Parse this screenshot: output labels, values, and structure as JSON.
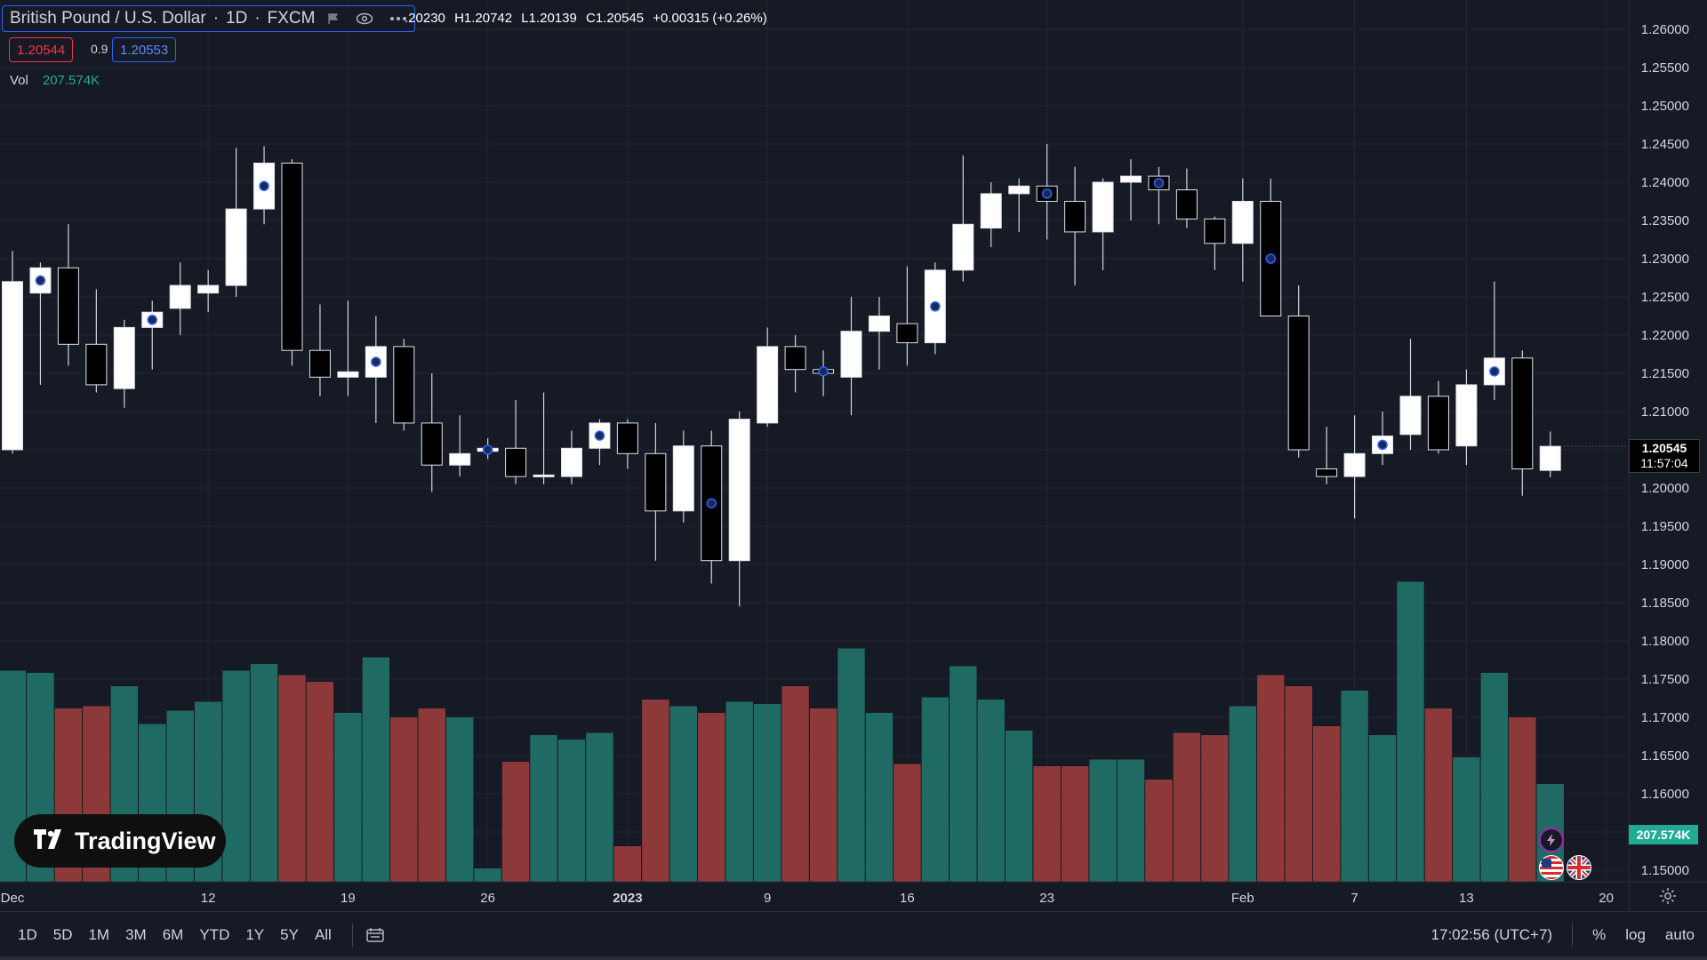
{
  "header": {
    "symbol": "British Pound / U.S. Dollar",
    "interval": "1D",
    "exchange": "FXCM",
    "separator": "·",
    "ohlc": {
      "o": ".20230",
      "h": "H1.20742",
      "l": "L1.20139",
      "c": "C1.20545",
      "change": "+0.00315 (+0.26%)"
    },
    "sell_price": "1.20544",
    "spread": "0.9",
    "buy_price": "1.20553",
    "vol_label": "Vol",
    "vol_value": "207.574K",
    "icons": [
      "flag-icon",
      "eye-icon",
      "more-icon"
    ]
  },
  "price_axis": {
    "current_price": "1.20545",
    "countdown": "11:57:04",
    "volume_tag": "207.574K"
  },
  "bottom_bar": {
    "ranges": [
      "1D",
      "5D",
      "1M",
      "3M",
      "6M",
      "YTD",
      "1Y",
      "5Y",
      "All"
    ],
    "time": "17:02:56 (UTC+7)",
    "percent": "%",
    "log": "log",
    "auto": "auto"
  },
  "logo": {
    "text": "TradingView"
  },
  "colors": {
    "background": "#161a25",
    "up_body": "#ffffff",
    "down_body": "#000000",
    "wick": "#d1d4dc",
    "vol_up": "#1f6b63",
    "vol_down": "#8e3939",
    "grid": "#232733",
    "accent": "#2962ff"
  },
  "chart_data": {
    "type": "candlestick",
    "ylim": [
      1.1475,
      1.2625
    ],
    "yticks": [
      "1.15000",
      "1.15500",
      "1.16000",
      "1.16500",
      "1.17000",
      "1.17500",
      "1.18000",
      "1.18500",
      "1.19000",
      "1.19500",
      "1.20000",
      "1.20500",
      "1.21000",
      "1.21500",
      "1.22000",
      "1.22500",
      "1.23000",
      "1.23500",
      "1.24000",
      "1.24500",
      "1.25000",
      "1.25500",
      "1.26000"
    ],
    "xticks": [
      {
        "label": "Dec",
        "index": -0.5,
        "bold": false
      },
      {
        "label": "12",
        "index": 7,
        "bold": false
      },
      {
        "label": "19",
        "index": 12,
        "bold": false
      },
      {
        "label": "26",
        "index": 17,
        "bold": false
      },
      {
        "label": "2023",
        "index": 22,
        "bold": true
      },
      {
        "label": "9",
        "index": 27,
        "bold": false
      },
      {
        "label": "16",
        "index": 32,
        "bold": false
      },
      {
        "label": "23",
        "index": 37,
        "bold": false
      },
      {
        "label": "Feb",
        "index": 44,
        "bold": false
      },
      {
        "label": "7",
        "index": 48,
        "bold": false
      },
      {
        "label": "13",
        "index": 52,
        "bold": false
      },
      {
        "label": "20",
        "index": 57,
        "bold": false
      }
    ],
    "candles": [
      {
        "o": 1.205,
        "h": 1.231,
        "l": 1.2045,
        "c": 1.227,
        "v": 0.95,
        "m": false
      },
      {
        "o": 1.2255,
        "h": 1.2295,
        "l": 1.2135,
        "c": 1.2288,
        "v": 0.94,
        "m": true
      },
      {
        "o": 1.2288,
        "h": 1.2345,
        "l": 1.216,
        "c": 1.2188,
        "v": 0.78,
        "m": false
      },
      {
        "o": 1.2188,
        "h": 1.226,
        "l": 1.2125,
        "c": 1.2135,
        "v": 0.79,
        "m": false
      },
      {
        "o": 1.213,
        "h": 1.222,
        "l": 1.2105,
        "c": 1.221,
        "v": 0.88,
        "m": false
      },
      {
        "o": 1.221,
        "h": 1.2245,
        "l": 1.2155,
        "c": 1.223,
        "v": 0.71,
        "m": true
      },
      {
        "o": 1.2235,
        "h": 1.2295,
        "l": 1.22,
        "c": 1.2265,
        "v": 0.77,
        "m": false
      },
      {
        "o": 1.2255,
        "h": 1.2285,
        "l": 1.223,
        "c": 1.2265,
        "v": 0.81,
        "m": false
      },
      {
        "o": 1.2265,
        "h": 1.2445,
        "l": 1.225,
        "c": 1.2365,
        "v": 0.95,
        "m": false
      },
      {
        "o": 1.2365,
        "h": 1.2447,
        "l": 1.2345,
        "c": 1.2425,
        "v": 0.98,
        "m": true
      },
      {
        "o": 1.2425,
        "h": 1.243,
        "l": 1.216,
        "c": 1.218,
        "v": 0.93,
        "m": false
      },
      {
        "o": 1.218,
        "h": 1.224,
        "l": 1.212,
        "c": 1.2145,
        "v": 0.9,
        "m": false
      },
      {
        "o": 1.2145,
        "h": 1.2245,
        "l": 1.212,
        "c": 1.2152,
        "v": 0.76,
        "m": false
      },
      {
        "o": 1.2145,
        "h": 1.2225,
        "l": 1.2085,
        "c": 1.2185,
        "v": 1.01,
        "m": true
      },
      {
        "o": 1.2185,
        "h": 1.2195,
        "l": 1.2075,
        "c": 1.2085,
        "v": 0.74,
        "m": false
      },
      {
        "o": 1.2085,
        "h": 1.215,
        "l": 1.1995,
        "c": 1.203,
        "v": 0.78,
        "m": false
      },
      {
        "o": 1.203,
        "h": 1.2095,
        "l": 1.2015,
        "c": 1.2045,
        "v": 0.74,
        "m": false
      },
      {
        "o": 1.2048,
        "h": 1.2065,
        "l": 1.2038,
        "c": 1.2052,
        "v": 0.06,
        "m": true
      },
      {
        "o": 1.2052,
        "h": 1.2115,
        "l": 1.2005,
        "c": 1.2015,
        "v": 0.54,
        "m": false
      },
      {
        "o": 1.2015,
        "h": 1.2125,
        "l": 1.2005,
        "c": 1.2017,
        "v": 0.66,
        "m": false
      },
      {
        "o": 1.2015,
        "h": 1.2075,
        "l": 1.2005,
        "c": 1.2052,
        "v": 0.64,
        "m": false
      },
      {
        "o": 1.2052,
        "h": 1.209,
        "l": 1.203,
        "c": 1.2085,
        "v": 0.67,
        "m": true
      },
      {
        "o": 1.2085,
        "h": 1.209,
        "l": 1.2025,
        "c": 1.2045,
        "v": 0.16,
        "m": false
      },
      {
        "o": 1.2045,
        "h": 1.2085,
        "l": 1.1905,
        "c": 1.197,
        "v": 0.82,
        "m": false
      },
      {
        "o": 1.197,
        "h": 1.2075,
        "l": 1.1955,
        "c": 1.2055,
        "v": 0.79,
        "m": false
      },
      {
        "o": 1.2055,
        "h": 1.2075,
        "l": 1.1875,
        "c": 1.1905,
        "v": 0.76,
        "m": true
      },
      {
        "o": 1.1905,
        "h": 1.21,
        "l": 1.1845,
        "c": 1.209,
        "v": 0.81,
        "m": false
      },
      {
        "o": 1.2085,
        "h": 1.221,
        "l": 1.208,
        "c": 1.2185,
        "v": 0.8,
        "m": false
      },
      {
        "o": 1.2185,
        "h": 1.22,
        "l": 1.2125,
        "c": 1.2155,
        "v": 0.88,
        "m": false
      },
      {
        "o": 1.2155,
        "h": 1.218,
        "l": 1.212,
        "c": 1.215,
        "v": 0.78,
        "m": true
      },
      {
        "o": 1.2145,
        "h": 1.225,
        "l": 1.2095,
        "c": 1.2205,
        "v": 1.05,
        "m": false
      },
      {
        "o": 1.2205,
        "h": 1.225,
        "l": 1.2155,
        "c": 1.2225,
        "v": 0.76,
        "m": false
      },
      {
        "o": 1.2215,
        "h": 1.229,
        "l": 1.216,
        "c": 1.219,
        "v": 0.53,
        "m": false
      },
      {
        "o": 1.219,
        "h": 1.2295,
        "l": 1.2175,
        "c": 1.2285,
        "v": 0.83,
        "m": true
      },
      {
        "o": 1.2285,
        "h": 1.2435,
        "l": 1.227,
        "c": 1.2345,
        "v": 0.97,
        "m": false
      },
      {
        "o": 1.234,
        "h": 1.24,
        "l": 1.2315,
        "c": 1.2385,
        "v": 0.82,
        "m": false
      },
      {
        "o": 1.2385,
        "h": 1.2405,
        "l": 1.2335,
        "c": 1.2395,
        "v": 0.68,
        "m": false
      },
      {
        "o": 1.2395,
        "h": 1.245,
        "l": 1.2325,
        "c": 1.2375,
        "v": 0.52,
        "m": true
      },
      {
        "o": 1.2375,
        "h": 1.242,
        "l": 1.2265,
        "c": 1.2335,
        "v": 0.52,
        "m": false
      },
      {
        "o": 1.2335,
        "h": 1.2405,
        "l": 1.2285,
        "c": 1.24,
        "v": 0.55,
        "m": false
      },
      {
        "o": 1.24,
        "h": 1.243,
        "l": 1.235,
        "c": 1.2408,
        "v": 0.55,
        "m": false
      },
      {
        "o": 1.2408,
        "h": 1.242,
        "l": 1.2345,
        "c": 1.239,
        "v": 0.46,
        "m": true
      },
      {
        "o": 1.239,
        "h": 1.2418,
        "l": 1.234,
        "c": 1.2352,
        "v": 0.67,
        "m": false
      },
      {
        "o": 1.2352,
        "h": 1.2355,
        "l": 1.2285,
        "c": 1.232,
        "v": 0.66,
        "m": false
      },
      {
        "o": 1.232,
        "h": 1.2405,
        "l": 1.227,
        "c": 1.2375,
        "v": 0.79,
        "m": false
      },
      {
        "o": 1.2375,
        "h": 1.2405,
        "l": 1.2225,
        "c": 1.2225,
        "v": 0.93,
        "m": true
      },
      {
        "o": 1.2225,
        "h": 1.2265,
        "l": 1.204,
        "c": 1.205,
        "v": 0.88,
        "m": false
      },
      {
        "o": 1.2025,
        "h": 1.208,
        "l": 1.2005,
        "c": 1.2015,
        "v": 0.7,
        "m": false
      },
      {
        "o": 1.2015,
        "h": 1.2095,
        "l": 1.196,
        "c": 1.2045,
        "v": 0.86,
        "m": false
      },
      {
        "o": 1.2045,
        "h": 1.21,
        "l": 1.203,
        "c": 1.2068,
        "v": 0.66,
        "m": true
      },
      {
        "o": 1.207,
        "h": 1.2195,
        "l": 1.205,
        "c": 1.212,
        "v": 1.35,
        "m": false
      },
      {
        "o": 1.212,
        "h": 1.214,
        "l": 1.2045,
        "c": 1.205,
        "v": 0.78,
        "m": false
      },
      {
        "o": 1.2055,
        "h": 1.2155,
        "l": 1.203,
        "c": 1.2135,
        "v": 0.56,
        "m": false
      },
      {
        "o": 1.2135,
        "h": 1.227,
        "l": 1.2115,
        "c": 1.217,
        "v": 0.94,
        "m": true
      },
      {
        "o": 1.217,
        "h": 1.218,
        "l": 1.199,
        "c": 1.2025,
        "v": 0.74,
        "m": false
      },
      {
        "o": 1.2023,
        "h": 1.2074,
        "l": 1.2014,
        "c": 1.20545,
        "v": 0.44,
        "m": false
      }
    ]
  }
}
